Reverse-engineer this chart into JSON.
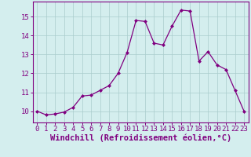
{
  "x": [
    0,
    1,
    2,
    3,
    4,
    5,
    6,
    7,
    8,
    9,
    10,
    11,
    12,
    13,
    14,
    15,
    16,
    17,
    18,
    19,
    20,
    21,
    22,
    23
  ],
  "y": [
    10.0,
    9.8,
    9.85,
    9.95,
    10.2,
    10.8,
    10.85,
    11.1,
    11.35,
    12.0,
    13.1,
    14.8,
    14.75,
    13.6,
    13.5,
    14.5,
    15.35,
    15.3,
    12.65,
    13.15,
    12.45,
    12.2,
    11.1,
    10.0
  ],
  "line_color": "#800080",
  "marker": "D",
  "marker_size": 2.0,
  "bg_color": "#d4eeee",
  "grid_color": "#aacccc",
  "xlabel": "Windchill (Refroidissement éolien,°C)",
  "xlabel_fontsize": 7.5,
  "ylim": [
    9.4,
    15.8
  ],
  "yticks": [
    10,
    11,
    12,
    13,
    14,
    15
  ],
  "xticks": [
    0,
    1,
    2,
    3,
    4,
    5,
    6,
    7,
    8,
    9,
    10,
    11,
    12,
    13,
    14,
    15,
    16,
    17,
    18,
    19,
    20,
    21,
    22,
    23
  ],
  "tick_color": "#800080",
  "tick_fontsize": 6.5,
  "spine_color": "#800080",
  "linewidth": 0.9
}
